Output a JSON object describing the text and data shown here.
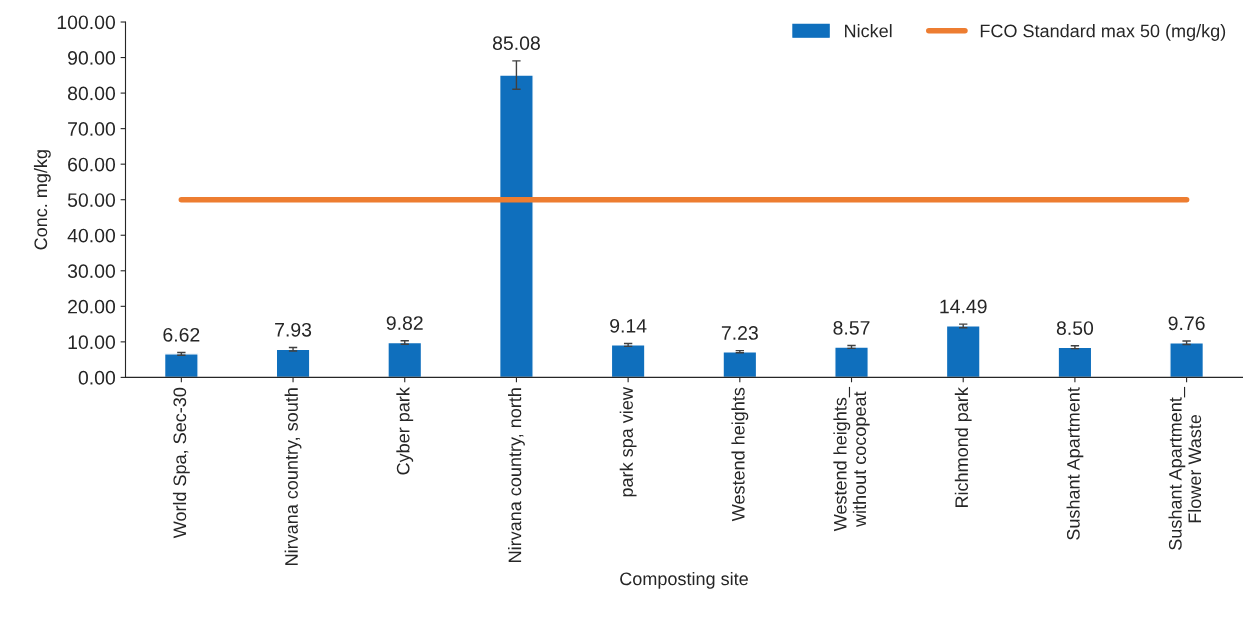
{
  "chart_data": {
    "type": "bar",
    "xlabel": "Composting site",
    "ylabel": "Conc. mg/kg",
    "categories": [
      "World Spa, Sec-30",
      "Nirvana country, south",
      "Cyber park",
      "Nirvana country, north",
      "park spa view",
      "Westend heights",
      "Westend heights_\nwithout cocopeat",
      "Richmond park",
      "Sushant Apartment",
      "Sushant Apartment_\nFlower Waste"
    ],
    "series": [
      {
        "name": "Nickel",
        "color": "#0f6fbd",
        "values": [
          6.62,
          7.93,
          9.82,
          85.08,
          9.14,
          7.23,
          8.57,
          14.49,
          8.5,
          9.76
        ],
        "errors": [
          0.4,
          0.5,
          0.5,
          4,
          0.4,
          0.3,
          0.4,
          0.5,
          0.4,
          0.5
        ],
        "value_labels": [
          "6.62",
          "7.93",
          "9.82",
          "85.08",
          "9.14",
          "7.23",
          "8.57",
          "14.49",
          "8.50",
          "9.76"
        ]
      },
      {
        "name": "FCO Standard max 50 (mg/kg)",
        "type": "line",
        "color": "#ed7d31",
        "values": [
          50,
          50,
          50,
          50,
          50,
          50,
          50,
          50,
          50,
          50
        ]
      }
    ],
    "ylim": [
      0,
      100
    ],
    "yticks": [
      {
        "value": 0,
        "label": "0.00"
      },
      {
        "value": 10,
        "label": "10.00"
      },
      {
        "value": 20,
        "label": "20.00"
      },
      {
        "value": 30,
        "label": "30.00"
      },
      {
        "value": 40,
        "label": "40.00"
      },
      {
        "value": 50,
        "label": "50.00"
      },
      {
        "value": 60,
        "label": "60.00"
      },
      {
        "value": 70,
        "label": "70.00"
      },
      {
        "value": 80,
        "label": "80.00"
      },
      {
        "value": 90,
        "label": "90.00"
      },
      {
        "value": 100,
        "label": "100.00"
      }
    ],
    "legend": "top right",
    "grid": false
  }
}
